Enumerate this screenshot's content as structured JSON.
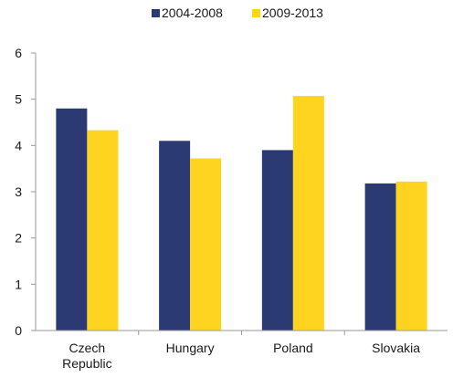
{
  "chart_data": {
    "type": "bar",
    "categories": [
      [
        "Czech",
        "Republic"
      ],
      [
        "Hungary"
      ],
      [
        "Poland"
      ],
      [
        "Slovakia"
      ]
    ],
    "series": [
      {
        "name": "2004-2008",
        "color": "#2c3a74",
        "values": [
          4.8,
          4.1,
          3.9,
          3.18
        ]
      },
      {
        "name": "2009-2013",
        "color": "#ffd420",
        "values": [
          4.33,
          3.72,
          5.07,
          3.22
        ]
      }
    ],
    "ylim": [
      0,
      6
    ],
    "yticks": [
      "0",
      "1",
      "2",
      "3",
      "4",
      "5",
      "6"
    ],
    "grid": false,
    "legend_position": "top-center"
  }
}
